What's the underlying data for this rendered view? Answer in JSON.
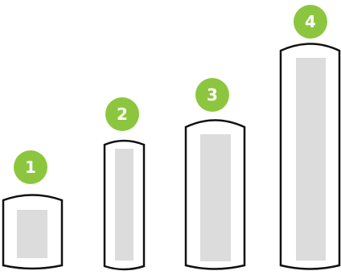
{
  "colors": {
    "badge": "#8cc63f",
    "badge_text": "#ffffff",
    "container_outline": "#111111",
    "container_fill": "#ffffff",
    "inner_panel": "#dcdcdc"
  },
  "items": [
    {
      "number": "1"
    },
    {
      "number": "2"
    },
    {
      "number": "3"
    },
    {
      "number": "4"
    }
  ]
}
